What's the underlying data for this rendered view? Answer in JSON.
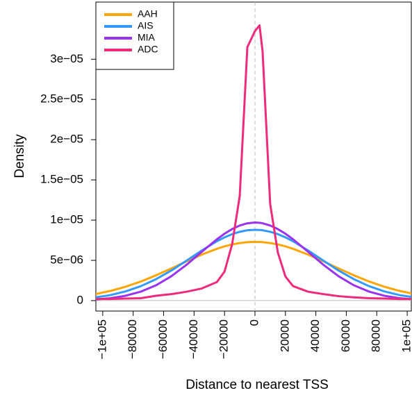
{
  "chart_data": {
    "type": "line",
    "x_label": "Distance to nearest TSS",
    "y_label": "Density",
    "x": [
      -105000,
      -95000,
      -85000,
      -75000,
      -65000,
      -55000,
      -45000,
      -35000,
      -25000,
      -20000,
      -15000,
      -10000,
      -5000,
      0,
      3000,
      5000,
      10000,
      15000,
      20000,
      25000,
      35000,
      45000,
      55000,
      65000,
      75000,
      85000,
      95000,
      105000
    ],
    "series": [
      {
        "name": "AAH",
        "color": "#ffa500",
        "values": [
          8e-07,
          1.2e-06,
          1.72e-06,
          2.37e-06,
          3.14e-06,
          3.99e-06,
          4.87e-06,
          5.71e-06,
          6.44e-06,
          6.74e-06,
          6.98e-06,
          7.15e-06,
          7.26e-06,
          7.3e-06,
          7.29e-06,
          7.26e-06,
          7.15e-06,
          6.98e-06,
          6.74e-06,
          6.44e-06,
          5.71e-06,
          4.87e-06,
          3.99e-06,
          3.14e-06,
          2.37e-06,
          1.72e-06,
          1.2e-06,
          8e-07
        ]
      },
      {
        "name": "AIS",
        "color": "#3399ff",
        "values": [
          3.9e-07,
          6.8e-07,
          1.14e-06,
          1.79e-06,
          2.66e-06,
          3.73e-06,
          4.96e-06,
          6.22e-06,
          7.37e-06,
          7.86e-06,
          8.26e-06,
          8.55e-06,
          8.74e-06,
          8.8e-06,
          8.78e-06,
          8.74e-06,
          8.55e-06,
          8.26e-06,
          7.86e-06,
          7.37e-06,
          6.22e-06,
          4.96e-06,
          3.73e-06,
          2.66e-06,
          1.79e-06,
          1.14e-06,
          6.8e-07,
          3.9e-07
        ]
      },
      {
        "name": "MIA",
        "color": "#9933ee",
        "values": [
          1.4e-07,
          3e-07,
          6e-07,
          1.11e-06,
          1.9e-06,
          3.02e-06,
          4.44e-06,
          6.05e-06,
          7.62e-06,
          8.31e-06,
          8.89e-06,
          9.33e-06,
          9.61e-06,
          9.7e-06,
          9.67e-06,
          9.61e-06,
          9.33e-06,
          8.89e-06,
          8.31e-06,
          7.62e-06,
          6.05e-06,
          4.44e-06,
          3.02e-06,
          1.9e-06,
          1.11e-06,
          6e-07,
          3e-07,
          1.4e-07
        ]
      },
      {
        "name": "ADC",
        "color": "#ee2a7b",
        "values": [
          2e-07,
          2e-07,
          2.5e-07,
          3e-07,
          6e-07,
          8e-07,
          1.1e-06,
          1.5e-06,
          2.3e-06,
          3.6e-06,
          7e-06,
          1.3e-05,
          3.15e-05,
          3.35e-05,
          3.42e-05,
          3.1e-05,
          1.2e-05,
          6e-06,
          3e-06,
          1.8e-06,
          1.1e-06,
          8e-07,
          5.5e-07,
          4e-07,
          3e-07,
          2.5e-07,
          2e-07,
          2e-07
        ]
      }
    ],
    "xlim": [
      -104500,
      102700
    ],
    "ylim": [
      -1.3e-06,
      3.71e-05
    ],
    "xticks": [
      {
        "value": -100000,
        "label": "−1e+05"
      },
      {
        "value": -80000,
        "label": "−80000"
      },
      {
        "value": -60000,
        "label": "−60000"
      },
      {
        "value": -40000,
        "label": "−40000"
      },
      {
        "value": -20000,
        "label": "−20000"
      },
      0,
      20000,
      40000,
      60000,
      80000,
      {
        "value": 100000,
        "label": "1e+05"
      }
    ],
    "yticks": [
      0,
      {
        "value": 5e-06,
        "label": "5e−06"
      },
      {
        "value": 1e-05,
        "label": "1e−05"
      },
      {
        "value": 1.5e-05,
        "label": "1.5e−05"
      },
      {
        "value": 2e-05,
        "label": "2e−05"
      },
      {
        "value": 2.5e-05,
        "label": "2.5e−05"
      },
      {
        "value": 3e-05,
        "label": "3e−05"
      }
    ],
    "vline": 0,
    "hline": 0,
    "legend": "topleft"
  }
}
